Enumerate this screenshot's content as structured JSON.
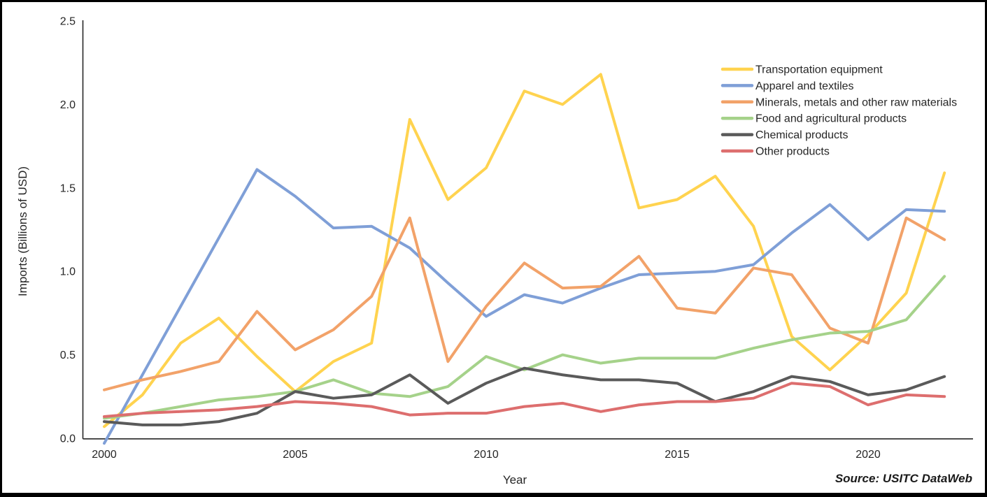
{
  "chart_data": {
    "type": "line",
    "title": "",
    "xlabel": "Year",
    "ylabel": "Imports (Billions of USD)",
    "source_note": "Source: USITC DataWeb",
    "x": [
      2000,
      2001,
      2002,
      2003,
      2004,
      2005,
      2006,
      2007,
      2008,
      2009,
      2010,
      2011,
      2012,
      2013,
      2014,
      2015,
      2016,
      2017,
      2018,
      2019,
      2020,
      2021,
      2022
    ],
    "x_ticks": [
      2000,
      2005,
      2010,
      2015,
      2020
    ],
    "y_ticks": [
      0.0,
      0.5,
      1.0,
      1.5,
      2.0,
      2.5
    ],
    "ylim": [
      0.0,
      2.5
    ],
    "grid": false,
    "legend_position": "upper-right",
    "axis_color": "#262626",
    "series": [
      {
        "name": "Transportation equipment",
        "color": "#FFD34F",
        "values": [
          0.07,
          0.26,
          0.57,
          0.72,
          0.49,
          0.28,
          0.46,
          0.57,
          1.91,
          1.43,
          1.62,
          2.08,
          2.0,
          2.18,
          1.38,
          1.43,
          1.57,
          1.27,
          0.61,
          0.41,
          0.62,
          0.87,
          1.59
        ]
      },
      {
        "name": "Apparel and textiles",
        "color": "#7F9FD7",
        "values": [
          -0.03,
          0.38,
          0.79,
          1.2,
          1.61,
          1.45,
          1.26,
          1.27,
          1.14,
          0.93,
          0.73,
          0.86,
          0.81,
          0.9,
          0.98,
          0.99,
          1.0,
          1.04,
          1.23,
          1.4,
          1.19,
          1.37,
          1.36
        ]
      },
      {
        "name": "Minerals, metals and other raw materials",
        "color": "#F2A269",
        "values": [
          0.29,
          0.35,
          0.4,
          0.46,
          0.76,
          0.53,
          0.65,
          0.85,
          1.32,
          0.46,
          0.79,
          1.05,
          0.9,
          0.91,
          1.09,
          0.78,
          0.75,
          1.02,
          0.98,
          0.66,
          0.57,
          1.32,
          1.19
        ]
      },
      {
        "name": "Food and agricultural products",
        "color": "#A5D28A",
        "values": [
          0.12,
          0.15,
          0.19,
          0.23,
          0.25,
          0.28,
          0.35,
          0.27,
          0.25,
          0.31,
          0.49,
          0.41,
          0.5,
          0.45,
          0.48,
          0.48,
          0.48,
          0.54,
          0.59,
          0.63,
          0.64,
          0.71,
          0.97
        ]
      },
      {
        "name": "Chemical products",
        "color": "#5A5A5A",
        "values": [
          0.1,
          0.08,
          0.08,
          0.1,
          0.15,
          0.28,
          0.24,
          0.26,
          0.38,
          0.21,
          0.33,
          0.42,
          0.38,
          0.35,
          0.35,
          0.33,
          0.22,
          0.28,
          0.37,
          0.34,
          0.26,
          0.29,
          0.37
        ]
      },
      {
        "name": "Other products",
        "color": "#DD6E6E",
        "values": [
          0.13,
          0.15,
          0.16,
          0.17,
          0.19,
          0.22,
          0.21,
          0.19,
          0.14,
          0.15,
          0.15,
          0.19,
          0.21,
          0.16,
          0.2,
          0.22,
          0.22,
          0.24,
          0.33,
          0.31,
          0.2,
          0.26,
          0.25
        ]
      }
    ]
  }
}
